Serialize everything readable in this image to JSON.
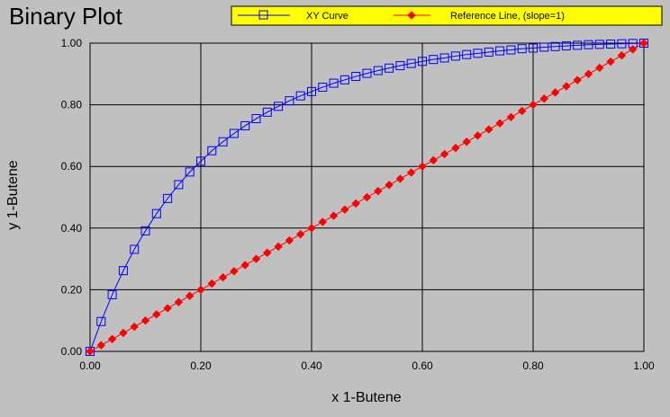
{
  "chart_data": {
    "type": "line",
    "title": "Binary Plot",
    "xlabel": "x 1-Butene",
    "ylabel": "y 1-Butene",
    "xlim": [
      0,
      1
    ],
    "ylim": [
      0,
      1
    ],
    "x_ticks": [
      "0.00",
      "0.20",
      "0.40",
      "0.60",
      "0.80",
      "1.00"
    ],
    "y_ticks": [
      "0.00",
      "0.20",
      "0.40",
      "0.60",
      "0.80",
      "1.00"
    ],
    "grid": true,
    "legend_position": "top",
    "series": [
      {
        "name": "XY Curve",
        "color": "#0000ff",
        "marker": "square",
        "x": [
          0.0,
          0.02,
          0.04,
          0.06,
          0.08,
          0.1,
          0.12,
          0.14,
          0.16,
          0.18,
          0.2,
          0.22,
          0.24,
          0.26,
          0.28,
          0.3,
          0.32,
          0.34,
          0.36,
          0.38,
          0.4,
          0.42,
          0.44,
          0.46,
          0.48,
          0.5,
          0.52,
          0.54,
          0.56,
          0.58,
          0.6,
          0.62,
          0.64,
          0.66,
          0.68,
          0.7,
          0.72,
          0.74,
          0.76,
          0.78,
          0.8,
          0.82,
          0.84,
          0.86,
          0.88,
          0.9,
          0.92,
          0.94,
          0.96,
          0.98,
          1.0
        ],
        "y": [
          0.0,
          0.097,
          0.184,
          0.262,
          0.331,
          0.391,
          0.447,
          0.496,
          0.541,
          0.582,
          0.617,
          0.651,
          0.68,
          0.707,
          0.732,
          0.755,
          0.776,
          0.795,
          0.813,
          0.829,
          0.843,
          0.857,
          0.87,
          0.881,
          0.892,
          0.902,
          0.911,
          0.919,
          0.927,
          0.934,
          0.941,
          0.947,
          0.952,
          0.958,
          0.963,
          0.967,
          0.971,
          0.975,
          0.978,
          0.982,
          0.984,
          0.987,
          0.989,
          0.991,
          0.993,
          0.995,
          0.996,
          0.997,
          0.998,
          0.999,
          1.0
        ]
      },
      {
        "name": "Reference Line, (slope=1)",
        "color": "#ff0000",
        "marker": "diamond",
        "x": [
          0.0,
          0.02,
          0.04,
          0.06,
          0.08,
          0.1,
          0.12,
          0.14,
          0.16,
          0.18,
          0.2,
          0.22,
          0.24,
          0.26,
          0.28,
          0.3,
          0.32,
          0.34,
          0.36,
          0.38,
          0.4,
          0.42,
          0.44,
          0.46,
          0.48,
          0.5,
          0.52,
          0.54,
          0.56,
          0.58,
          0.6,
          0.62,
          0.64,
          0.66,
          0.68,
          0.7,
          0.72,
          0.74,
          0.76,
          0.78,
          0.8,
          0.82,
          0.84,
          0.86,
          0.88,
          0.9,
          0.92,
          0.94,
          0.96,
          0.98,
          1.0
        ],
        "y": [
          0.0,
          0.02,
          0.04,
          0.06,
          0.08,
          0.1,
          0.12,
          0.14,
          0.16,
          0.18,
          0.2,
          0.22,
          0.24,
          0.26,
          0.28,
          0.3,
          0.32,
          0.34,
          0.36,
          0.38,
          0.4,
          0.42,
          0.44,
          0.46,
          0.48,
          0.5,
          0.52,
          0.54,
          0.56,
          0.58,
          0.6,
          0.62,
          0.64,
          0.66,
          0.68,
          0.7,
          0.72,
          0.74,
          0.76,
          0.78,
          0.8,
          0.82,
          0.84,
          0.86,
          0.88,
          0.9,
          0.92,
          0.94,
          0.96,
          0.98,
          1.0
        ]
      }
    ],
    "colors": {
      "background": "#c0c0c0",
      "legend_background": "#ffff00"
    }
  }
}
